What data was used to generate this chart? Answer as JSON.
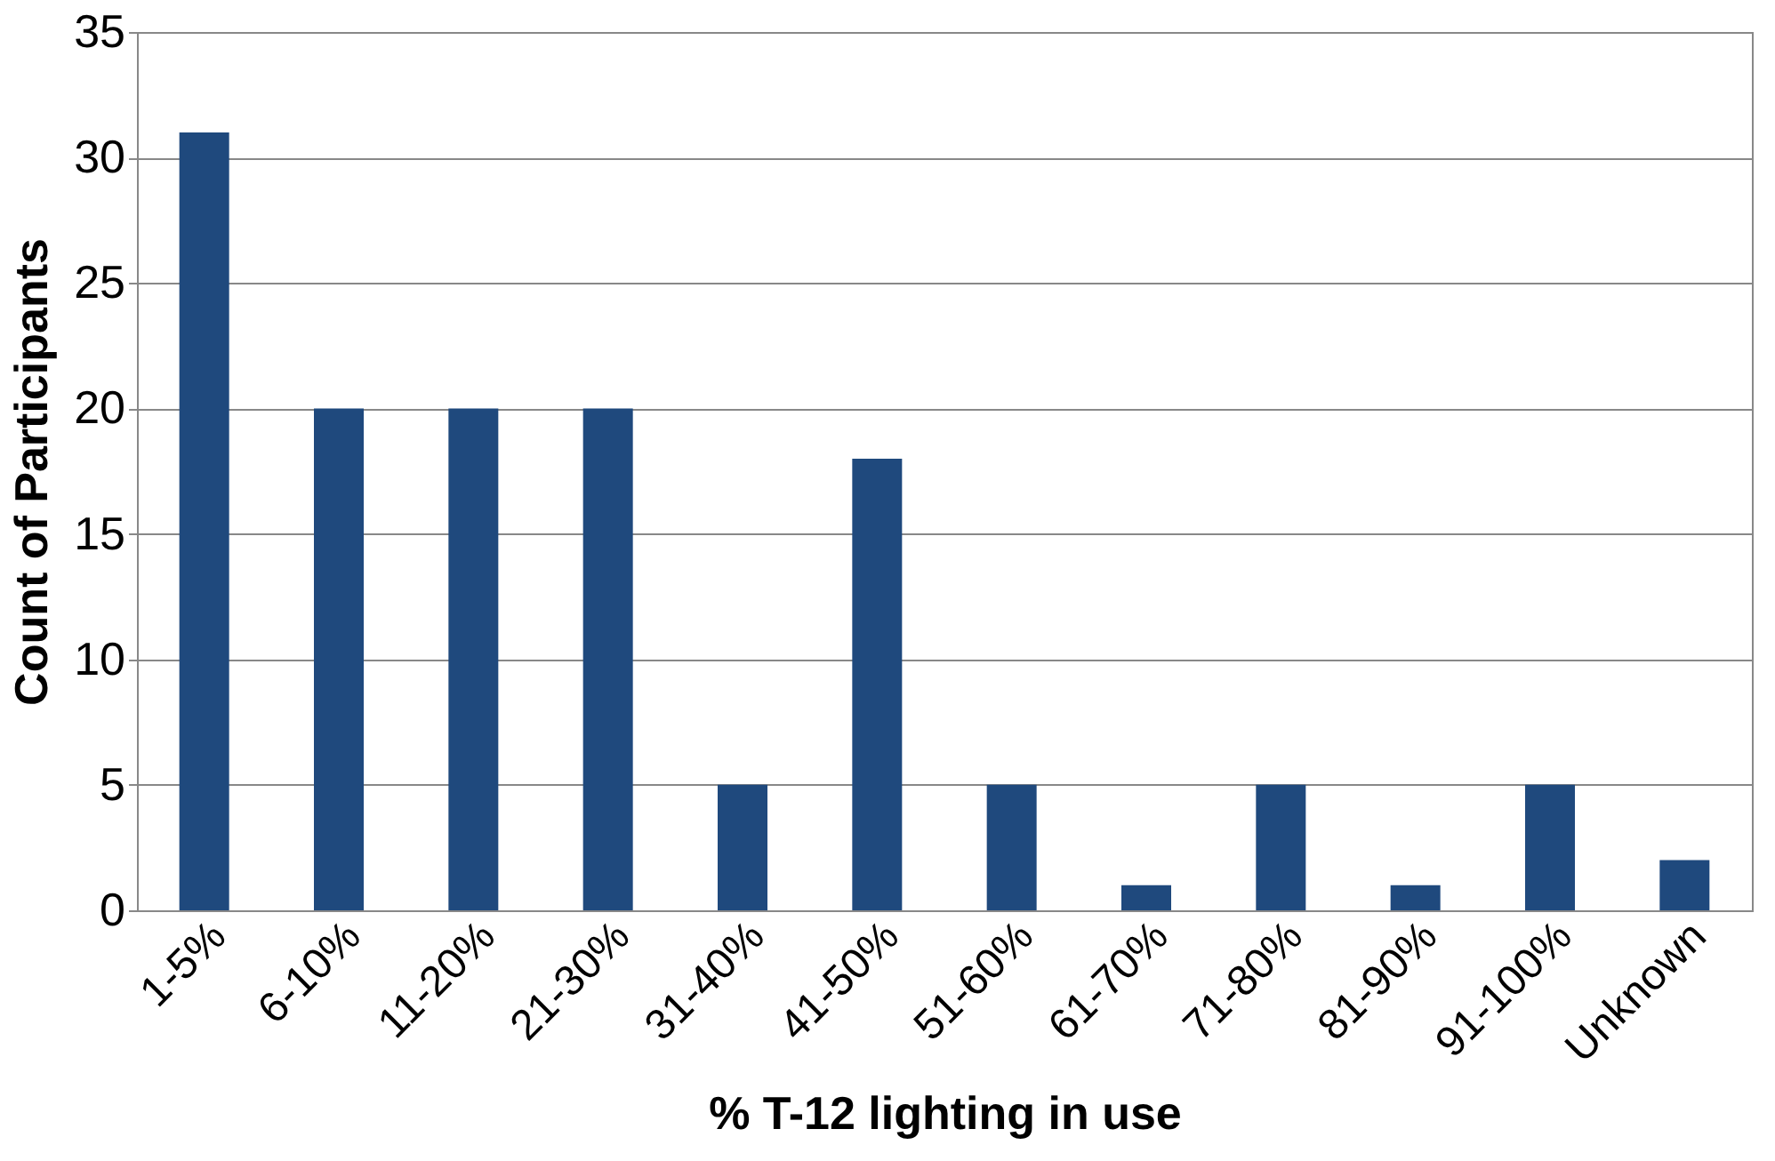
{
  "chart_data": {
    "type": "bar",
    "xlabel": "% T-12 lighting in use",
    "ylabel": "Count of Participants",
    "categories": [
      "1-5%",
      "6-10%",
      "11-20%",
      "21-30%",
      "31-40%",
      "41-50%",
      "51-60%",
      "61-70%",
      "71-80%",
      "81-90%",
      "91-100%",
      "Unknown"
    ],
    "values": [
      31,
      20,
      20,
      20,
      5,
      18,
      5,
      1,
      5,
      1,
      5,
      2
    ],
    "color": "#1f497d",
    "ylim": [
      0,
      35
    ],
    "yticks": [
      0,
      5,
      10,
      15,
      20,
      25,
      30,
      35
    ],
    "grid": "y"
  }
}
